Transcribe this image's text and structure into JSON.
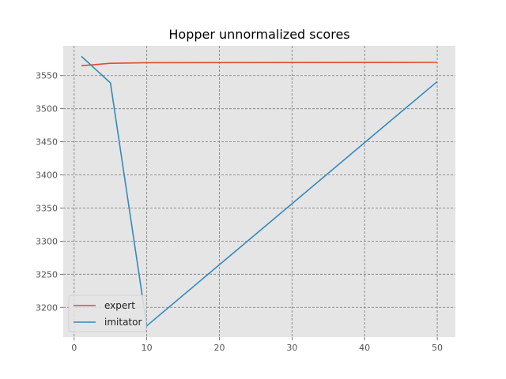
{
  "chart_data": {
    "type": "line",
    "title": "Hopper unnormalized scores",
    "xlabel": "",
    "ylabel": "",
    "xlim": [
      -1.5,
      52.5
    ],
    "ylim": [
      3155,
      3595
    ],
    "xticks": [
      0,
      10,
      20,
      30,
      40,
      50
    ],
    "yticks": [
      3200,
      3250,
      3300,
      3350,
      3400,
      3450,
      3500,
      3550
    ],
    "grid": true,
    "legend_position": "lower-left",
    "series": [
      {
        "name": "expert",
        "color": "#E24A33",
        "x": [
          1,
          5,
          10,
          50
        ],
        "y": [
          3565,
          3568.5,
          3569.5,
          3570
        ]
      },
      {
        "name": "imitator",
        "color": "#348ABD",
        "x": [
          1,
          5,
          10,
          50
        ],
        "y": [
          3579,
          3539,
          3172,
          3541
        ]
      }
    ]
  }
}
